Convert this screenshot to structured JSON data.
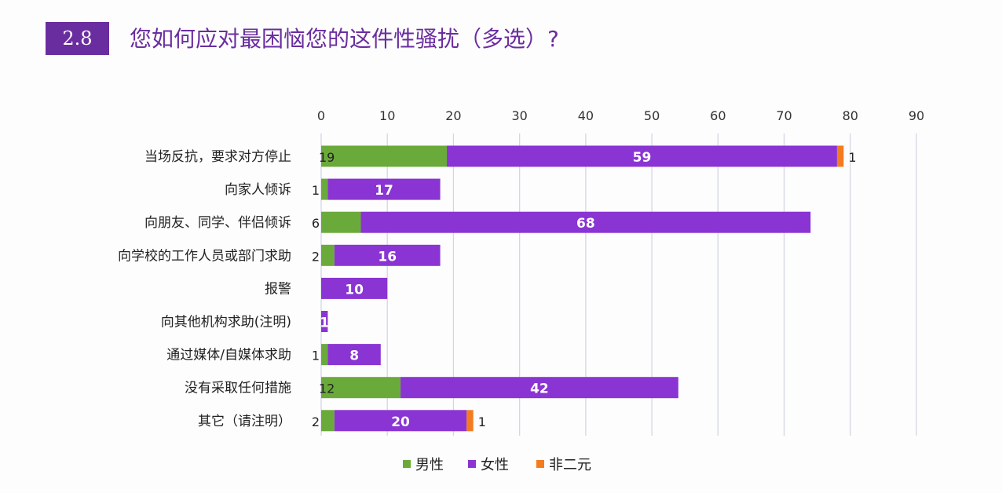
{
  "header": {
    "badge": "2.8",
    "title": "您如何应对最困恼您的这件性骚扰（多选）?"
  },
  "chart_data": {
    "type": "bar",
    "orientation": "horizontal",
    "stacked": true,
    "title": "",
    "xlim": [
      0,
      90
    ],
    "ticks": [
      0,
      10,
      20,
      30,
      40,
      50,
      60,
      70,
      80,
      90
    ],
    "grid": true,
    "legend": "bottom",
    "categories": [
      "当场反抗，要求对方停止",
      "向家人倾诉",
      "向朋友、同学、伴侣倾诉",
      "向学校的工作人员或部门求助",
      "报警",
      "向其他机构求助(注明)",
      "通过媒体/自媒体求助",
      "没有采取任何措施",
      "其它（请注明）"
    ],
    "series": [
      {
        "name": "男性",
        "color": "#6aaa3a",
        "values": [
          19,
          1,
          6,
          2,
          0,
          0,
          1,
          12,
          2
        ]
      },
      {
        "name": "女性",
        "color": "#8a35d3",
        "values": [
          59,
          17,
          68,
          16,
          10,
          1,
          8,
          42,
          20
        ]
      },
      {
        "name": "非二元",
        "color": "#f47c20",
        "values": [
          1,
          0,
          0,
          0,
          0,
          0,
          0,
          0,
          1
        ]
      }
    ]
  }
}
